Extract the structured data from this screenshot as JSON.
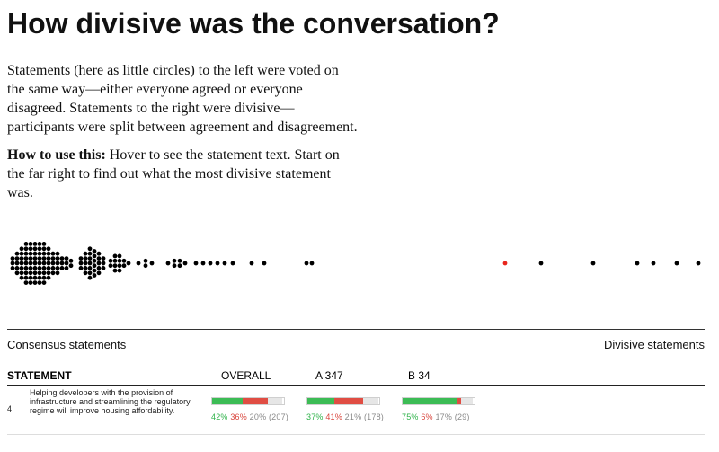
{
  "page": {
    "title": "How divisive was the conversation?",
    "intro": {
      "paragraph1": "Statements (here as little circles) to the left were voted on the same way—either everyone agreed or everyone disagreed. Statements to the right were divisive—participants were split between agreement and disagreement.",
      "howto_bold": "How to use this:",
      "howto_text": " Hover to see the statement text. Start on the far right to find out what the most divisive statement was."
    }
  },
  "colors": {
    "agree": "#3cbc55",
    "disagree": "#e04d43",
    "pass": "#e6e6e6",
    "dot": "#000000",
    "highlight_dot": "#e8261d"
  },
  "axis": {
    "left_label": "Consensus statements",
    "right_label": "Divisive statements"
  },
  "table": {
    "columns": {
      "statement": "STATEMENT",
      "overall": "OVERALL",
      "group_a": "A 347",
      "group_b": "B 34"
    },
    "rows": [
      {
        "id": "4",
        "text": "Helping developers with the provision of infrastructure and streamlining the regulatory regime will improve housing affordability.",
        "overall": {
          "agree": 42,
          "disagree": 36,
          "pass": 20,
          "count": 207
        },
        "group_a": {
          "agree": 37,
          "disagree": 41,
          "pass": 21,
          "count": 178
        },
        "group_b": {
          "agree": 75,
          "disagree": 6,
          "pass": 17,
          "count": 29
        }
      }
    ]
  }
}
